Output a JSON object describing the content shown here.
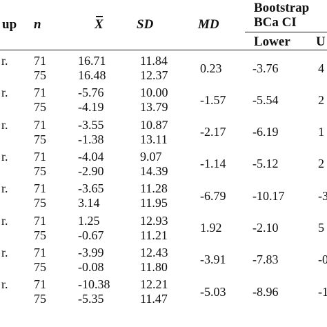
{
  "headers": {
    "group": "up",
    "n": "n",
    "mean": "X",
    "sd": "SD",
    "md": "MD",
    "bootstrap_line1": "Bootstrap",
    "bootstrap_line2": "BCa CI",
    "lower": "Lower",
    "upper": "U"
  },
  "rows": [
    {
      "label": "r.",
      "n": [
        "71",
        "75"
      ],
      "mean": [
        "16.71",
        "16.48"
      ],
      "sd": [
        "11.84",
        "12.37"
      ],
      "md": "0.23",
      "lower": "-3.76",
      "upper": "4"
    },
    {
      "label": "r.",
      "n": [
        "71",
        "75"
      ],
      "mean": [
        "-5.76",
        "-4.19"
      ],
      "sd": [
        "10.00",
        "13.79"
      ],
      "md": "-1.57",
      "lower": "-5.54",
      "upper": "2"
    },
    {
      "label": "r.",
      "n": [
        "71",
        "75"
      ],
      "mean": [
        "-3.55",
        "-1.38"
      ],
      "sd": [
        "10.87",
        "13.11"
      ],
      "md": "-2.17",
      "lower": "-6.19",
      "upper": "1"
    },
    {
      "label": "r.",
      "n": [
        "71",
        "75"
      ],
      "mean": [
        "-4.04",
        "-2.90"
      ],
      "sd": [
        "9.07",
        "14.39"
      ],
      "md": "-1.14",
      "lower": "-5.12",
      "upper": "2"
    },
    {
      "label": "r.",
      "n": [
        "71",
        "75"
      ],
      "mean": [
        "-3.65",
        "3.14"
      ],
      "sd": [
        "11.28",
        "11.95"
      ],
      "md": "-6.79",
      "lower": "-10.17",
      "upper": "-3"
    },
    {
      "label": "r.",
      "n": [
        "71",
        "75"
      ],
      "mean": [
        "1.25",
        "-0.67"
      ],
      "sd": [
        "12.93",
        "11.21"
      ],
      "md": "1.92",
      "lower": "-2.10",
      "upper": "5"
    },
    {
      "label": "r.",
      "n": [
        "71",
        "75"
      ],
      "mean": [
        "-3.99",
        "-0.08"
      ],
      "sd": [
        "12.43",
        "11.80"
      ],
      "md": "-3.91",
      "lower": "-7.83",
      "upper": "-0"
    },
    {
      "label": "r.",
      "n": [
        "71",
        "75"
      ],
      "mean": [
        "-10.38",
        "-5.35"
      ],
      "sd": [
        "12.21",
        "11.47"
      ],
      "md": "-5.03",
      "lower": "-8.96",
      "upper": "-1"
    }
  ]
}
